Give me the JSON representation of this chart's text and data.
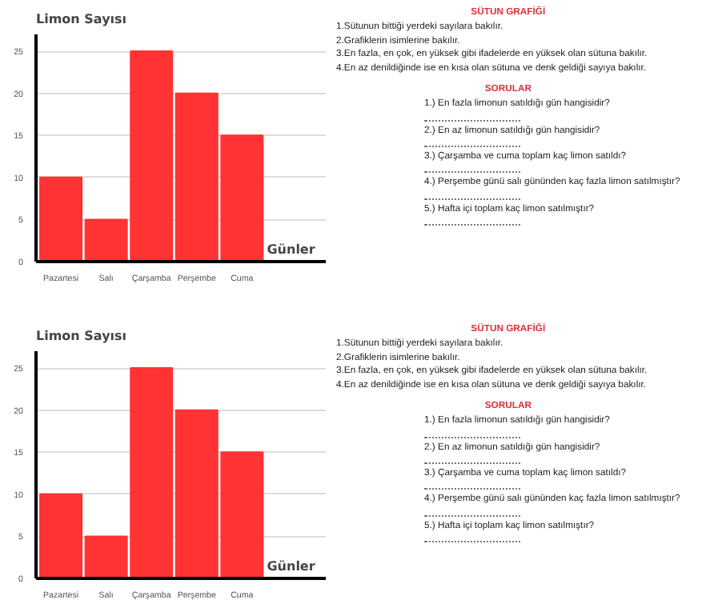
{
  "chart_data": [
    {
      "type": "bar",
      "ylabel": "Limon Sayısı",
      "xlabel": "Günler",
      "categories": [
        "Pazartesi",
        "Salı",
        "Çarşamba",
        "Perşembe",
        "Cuma"
      ],
      "values": [
        10,
        5,
        25,
        20,
        15
      ],
      "color": "#ff3333",
      "ylim": [
        0,
        27
      ],
      "yticks": [
        0,
        5,
        10,
        15,
        20,
        25
      ],
      "grid": "y",
      "annotations": [
        "SÜTUN GRAFİĞİ",
        "1.Sütunun bittiği yerdeki sayılara bakılır.",
        "2.Grafiklerin isimlerine bakılır.",
        "3.En fazla, en çok, en yüksek gibi ifadelerde en yüksek olan sütuna bakılır.",
        "4.En az denildiğinde ise en kısa olan sütuna ve denk geldiği sayıya bakılır.",
        "SORULAR",
        "1.) En fazla limonun satıldığı gün hangisidir?",
        "2.) En az limonun satıldığı gün hangisidir?",
        "3.) Çarşamba ve cuma toplam kaç limon satıldı?",
        "4.) Perşembe günü salı gününden kaç fazla limon satılmıştır?",
        "5.) Hafta içi toplam kaç limon satılmıştır?"
      ]
    },
    {
      "type": "bar",
      "ylabel": "Limon Sayısı",
      "xlabel": "Günler",
      "categories": [
        "Pazartesi",
        "Salı",
        "Çarşamba",
        "Perşembe",
        "Cuma"
      ],
      "values": [
        10,
        5,
        25,
        20,
        15
      ],
      "color": "#ff3333",
      "ylim": [
        0,
        27
      ],
      "yticks": [
        0,
        5,
        10,
        15,
        20,
        25
      ],
      "grid": "y",
      "annotations": [
        "SÜTUN GRAFİĞİ",
        "1.Sütunun bittiği yerdeki sayılara bakılır.",
        "2.Grafiklerin isimlerine bakılır.",
        "3.En fazla, en çok, en yüksek gibi ifadelerde en yüksek olan sütuna bakılır.",
        "4.En az denildiğinde ise en kısa olan sütuna ve denk geldiği sayıya bakılır.",
        "SORULAR",
        "1.) En fazla limonun satıldığı gün hangisidir?",
        "2.) En az limonun satıldığı gün hangisidir?",
        "3.) Çarşamba ve cuma toplam kaç limon satıldı?",
        "4.) Perşembe günü salı gününden kaç fazla limon satılmıştır?",
        "5.) Hafta içi toplam kaç limon satılmıştır?"
      ]
    }
  ]
}
